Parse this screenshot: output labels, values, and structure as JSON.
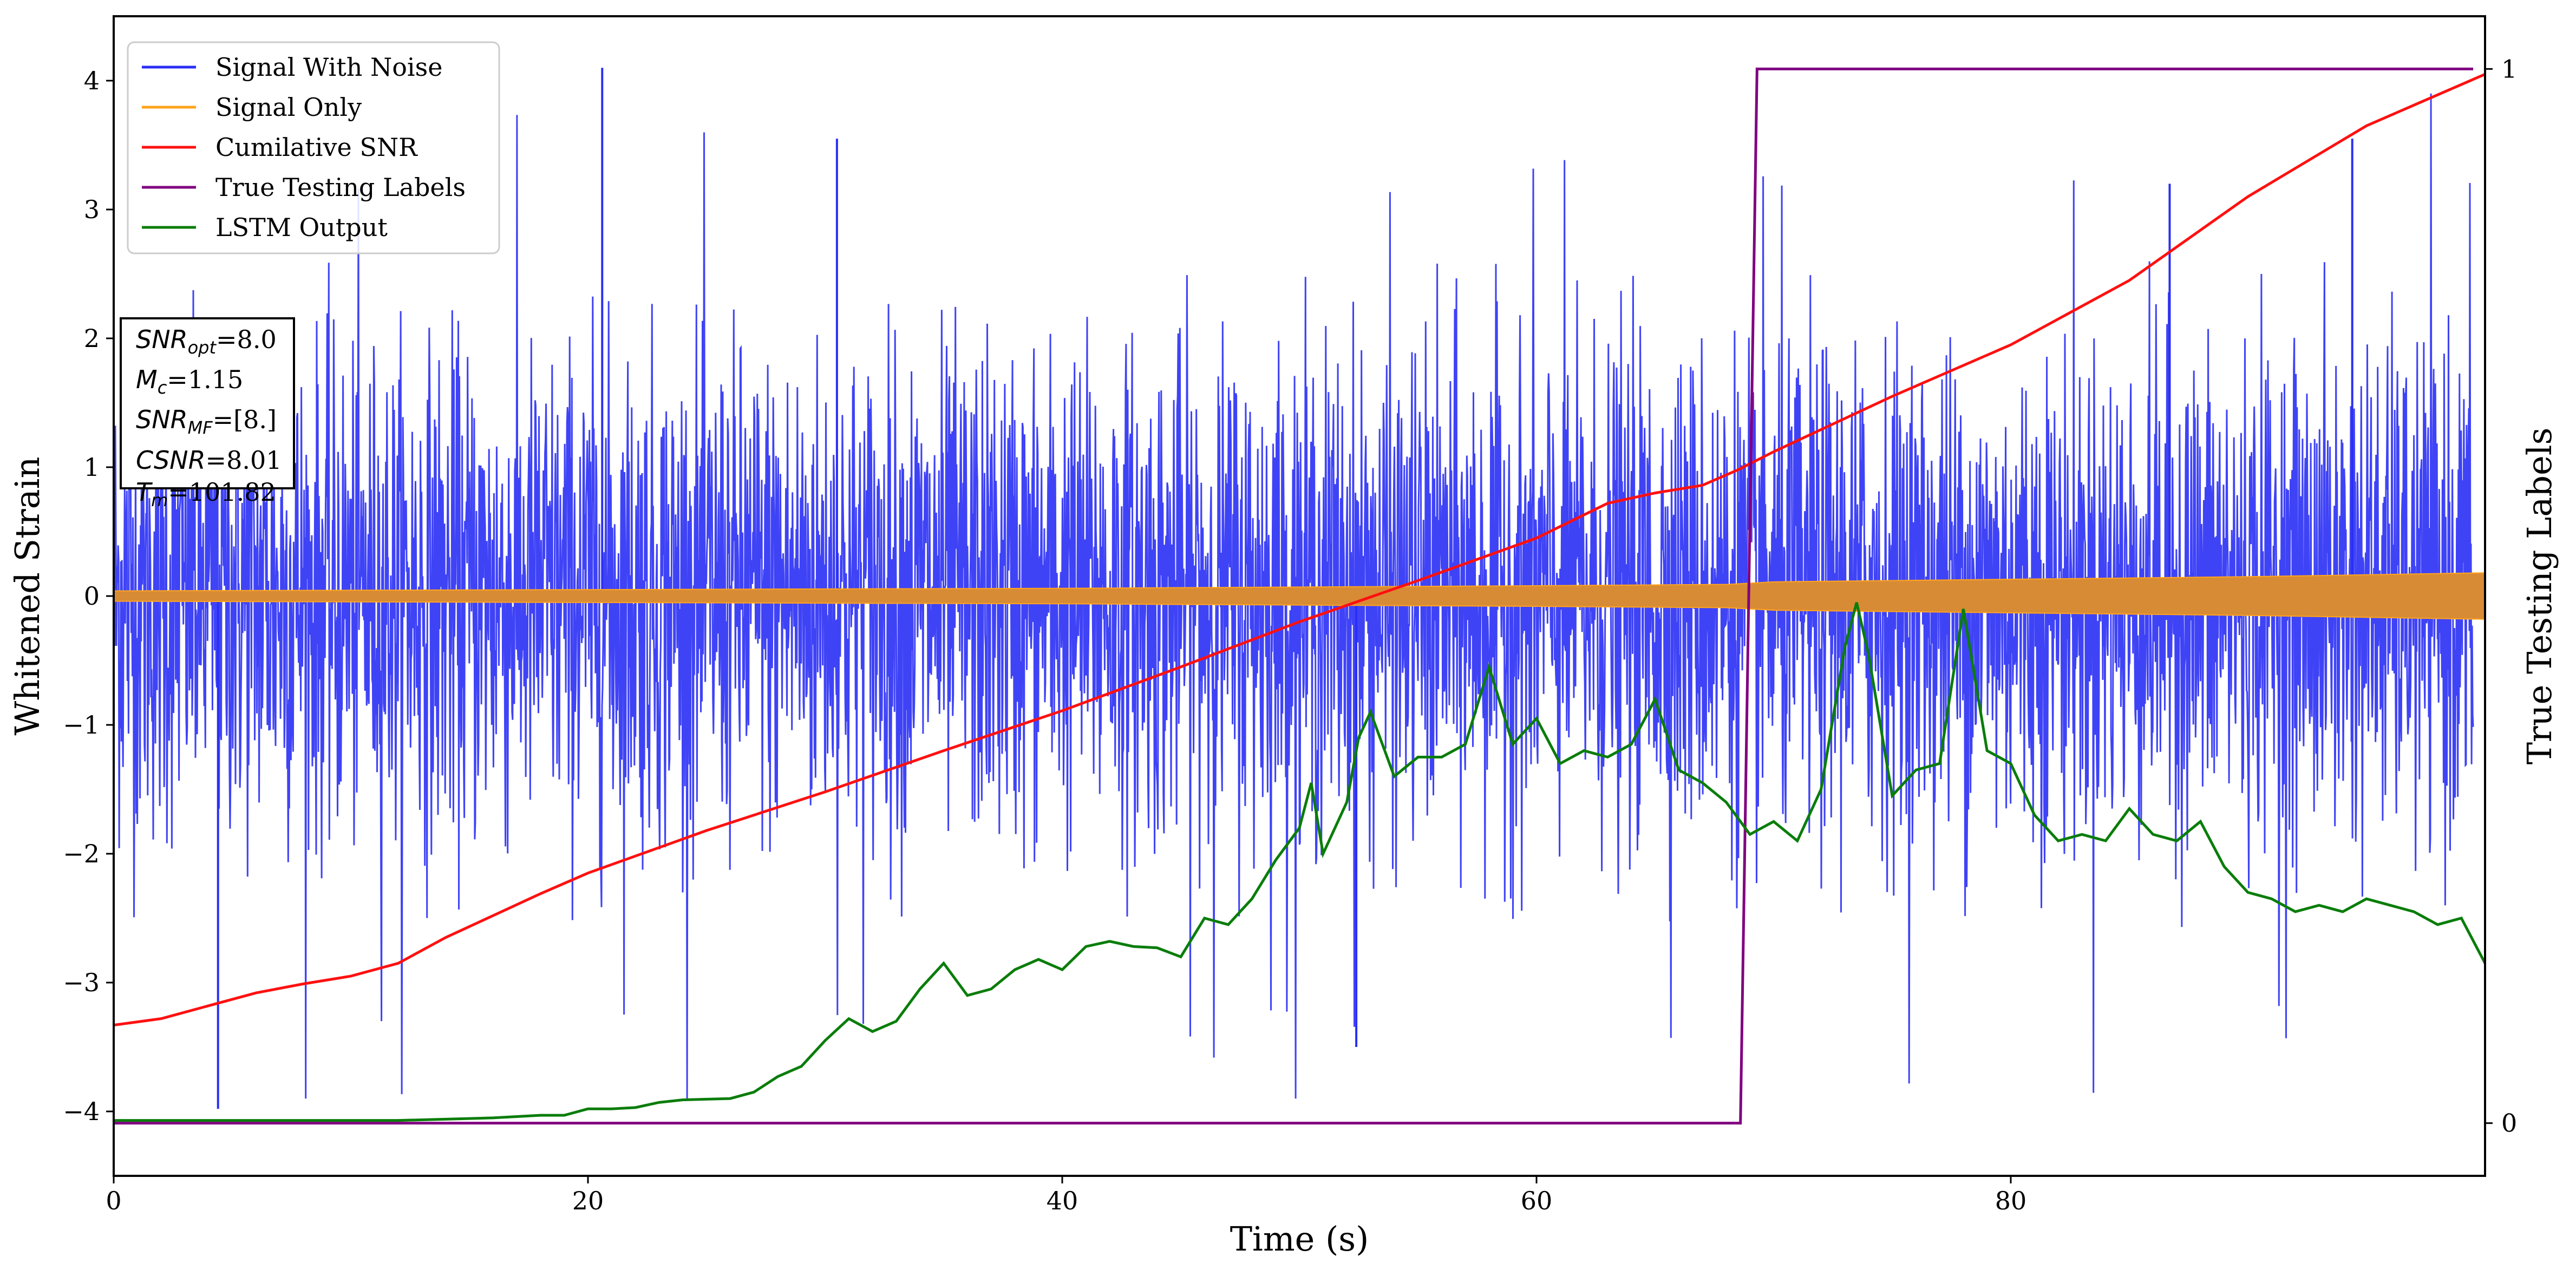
{
  "chart_data": {
    "type": "line",
    "xlabel": "Time (s)",
    "ylabel_left": "Whitened Strain",
    "ylabel_right": "True Testing Labels",
    "xlim": [
      0,
      100
    ],
    "ylim_left": [
      -4.5,
      4.5
    ],
    "ylim_right": [
      -0.05,
      1.05
    ],
    "x_ticks": [
      0,
      20,
      40,
      60,
      80
    ],
    "y_left_ticks": [
      -4,
      -3,
      -2,
      -1,
      0,
      1,
      2,
      3,
      4
    ],
    "y_right_ticks": [
      0,
      1
    ],
    "grid": false,
    "legend_position": "upper-left",
    "colors": {
      "signal_with_noise": "#2a2ff5",
      "signal_only": "#ffa41c",
      "cumulative_snr": "#ff1010",
      "true_labels": "#800080",
      "lstm": "#0a7d0a"
    },
    "series": [
      {
        "name": "Signal With Noise",
        "kind": "noise_envelope",
        "description_values": {
          "typical_band": [
            -1.6,
            1.6
          ],
          "max": 4.1,
          "min": -4.0
        }
      },
      {
        "name": "Signal Only",
        "kind": "band",
        "x": [
          0,
          10,
          20,
          30,
          40,
          50,
          60,
          68,
          70,
          80,
          90,
          100
        ],
        "amplitude": [
          0.04,
          0.045,
          0.05,
          0.055,
          0.06,
          0.07,
          0.08,
          0.09,
          0.11,
          0.13,
          0.15,
          0.18
        ]
      },
      {
        "name": "Cumilative SNR",
        "axis": "left",
        "x": [
          0,
          2,
          4,
          6,
          8,
          10,
          12,
          14,
          16,
          18,
          20,
          25,
          30,
          35,
          40,
          45,
          50,
          55,
          60,
          63,
          65,
          67,
          68.5,
          70,
          75,
          80,
          85,
          90,
          95,
          100
        ],
        "y": [
          -3.33,
          -3.28,
          -3.18,
          -3.08,
          -3.01,
          -2.95,
          -2.85,
          -2.65,
          -2.48,
          -2.31,
          -2.15,
          -1.82,
          -1.52,
          -1.2,
          -0.89,
          -0.55,
          -0.2,
          0.12,
          0.45,
          0.72,
          0.8,
          0.86,
          0.98,
          1.12,
          1.55,
          1.95,
          2.45,
          3.1,
          3.65,
          4.05
        ]
      },
      {
        "name": "True Testing Labels",
        "axis": "right",
        "x": [
          0,
          68.6,
          69.3,
          99.5
        ],
        "y": [
          0,
          0,
          1,
          1
        ]
      },
      {
        "name": "LSTM Output",
        "axis": "left",
        "x": [
          0,
          12,
          16,
          18,
          19,
          20,
          21,
          22,
          23,
          24,
          26,
          27,
          28,
          29,
          30,
          31,
          32,
          33,
          34,
          35,
          36,
          37,
          38,
          39,
          40,
          41,
          42,
          43,
          44,
          45,
          46,
          47,
          48,
          49,
          50,
          50.5,
          51,
          52,
          52.5,
          53,
          54,
          55,
          56,
          57,
          58,
          59,
          60,
          61,
          62,
          63,
          64,
          65,
          66,
          67,
          68,
          69,
          70,
          71,
          72,
          73,
          73.5,
          74,
          75,
          76,
          77,
          78,
          79,
          80,
          81,
          82,
          83,
          84,
          85,
          86,
          87,
          88,
          89,
          90,
          91,
          92,
          93,
          94,
          95,
          96,
          97,
          98,
          99,
          100
        ],
        "y": [
          -4.07,
          -4.07,
          -4.05,
          -4.03,
          -4.03,
          -3.98,
          -3.98,
          -3.97,
          -3.93,
          -3.91,
          -3.9,
          -3.85,
          -3.73,
          -3.65,
          -3.45,
          -3.28,
          -3.38,
          -3.3,
          -3.05,
          -2.85,
          -3.1,
          -3.05,
          -2.9,
          -2.82,
          -2.9,
          -2.72,
          -2.68,
          -2.72,
          -2.73,
          -2.8,
          -2.5,
          -2.55,
          -2.35,
          -2.05,
          -1.8,
          -1.45,
          -2.0,
          -1.6,
          -1.1,
          -0.9,
          -1.4,
          -1.25,
          -1.25,
          -1.15,
          -0.55,
          -1.15,
          -0.95,
          -1.3,
          -1.2,
          -1.25,
          -1.15,
          -0.8,
          -1.35,
          -1.45,
          -1.6,
          -1.85,
          -1.75,
          -1.9,
          -1.5,
          -0.4,
          -0.05,
          -0.45,
          -1.55,
          -1.35,
          -1.3,
          -0.1,
          -1.2,
          -1.3,
          -1.7,
          -1.9,
          -1.85,
          -1.9,
          -1.65,
          -1.85,
          -1.9,
          -1.75,
          -2.1,
          -2.3,
          -2.35,
          -2.45,
          -2.4,
          -2.45,
          -2.35,
          -2.4,
          -2.45,
          -2.55,
          -2.5,
          -2.85
        ]
      }
    ]
  },
  "annotation_box": {
    "line1_sym": "SNR",
    "line1_sub": "opt",
    "line1_val": "=8.0",
    "line2_sym": "M",
    "line2_sub": "c",
    "line2_val": "=1.15",
    "line3_sym": "SNR",
    "line3_sub": "MF",
    "line3_val": "=[8.]",
    "line4_sym": "CSNR",
    "line4_val": "=8.01",
    "line5_sym": "T",
    "line5_sub": "m",
    "line5_val": "=101.82"
  }
}
